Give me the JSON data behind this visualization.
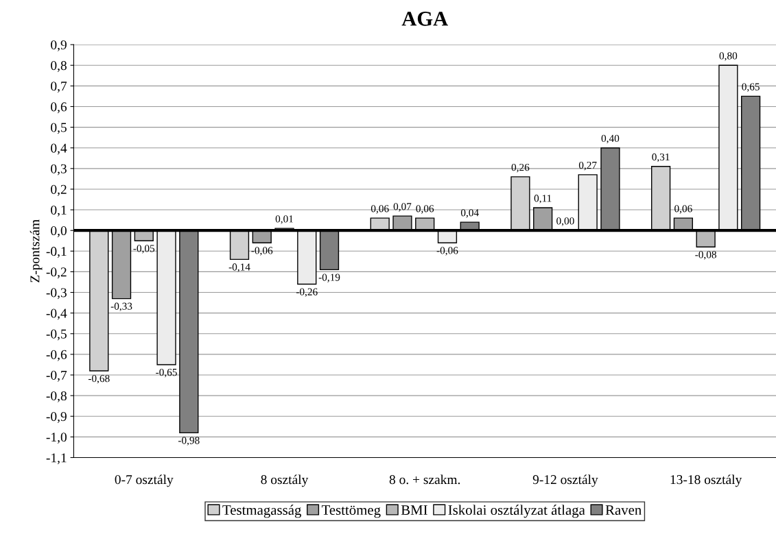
{
  "chart_data": {
    "type": "bar",
    "title": "AGA",
    "ylabel": "Z-pontszám",
    "categories": [
      "0-7 osztály",
      "8 osztály",
      "8 o. + szakm.",
      "9-12 osztály",
      "13-18 osztály"
    ],
    "series": [
      {
        "name": "Testmagasság",
        "color": "#d0d0d0",
        "values": [
          -0.68,
          -0.14,
          0.06,
          0.26,
          0.31
        ],
        "value_labels": [
          "-0,68",
          "-0,14",
          "0,06",
          "0,26",
          "0,31"
        ]
      },
      {
        "name": "Testtömeg",
        "color": "#a0a0a0",
        "values": [
          -0.33,
          -0.06,
          0.07,
          0.11,
          0.06
        ],
        "value_labels": [
          "-0,33",
          "-0,06",
          "0,07",
          "0,11",
          "0,06"
        ]
      },
      {
        "name": "BMI",
        "color": "#b8b8b8",
        "values": [
          -0.05,
          0.01,
          0.06,
          0.0,
          -0.08
        ],
        "value_labels": [
          "-0,05",
          "0,01",
          "0,06",
          "0,00",
          "-0,08"
        ]
      },
      {
        "name": "Iskolai osztályzat átlaga",
        "color": "#ececec",
        "values": [
          -0.65,
          -0.26,
          -0.06,
          0.27,
          0.8
        ],
        "value_labels": [
          "-0,65",
          "-0,26",
          "-0,06",
          "0,27",
          "0,80"
        ]
      },
      {
        "name": "Raven",
        "color": "#808080",
        "values": [
          -0.98,
          -0.19,
          0.04,
          0.4,
          0.65
        ],
        "value_labels": [
          "-0,98",
          "-0,19",
          "0,04",
          "0,40",
          "0,65"
        ]
      }
    ],
    "ylim": [
      -1.1,
      0.9
    ],
    "yticks": [
      {
        "value": -1.1,
        "label": "-1,1"
      },
      {
        "value": -1.0,
        "label": "-1,0"
      },
      {
        "value": -0.9,
        "label": "-0,9"
      },
      {
        "value": -0.8,
        "label": "-0,8"
      },
      {
        "value": -0.7,
        "label": "-0,7"
      },
      {
        "value": -0.6,
        "label": "-0,6"
      },
      {
        "value": -0.5,
        "label": "-0,5"
      },
      {
        "value": -0.4,
        "label": "-0,4"
      },
      {
        "value": -0.3,
        "label": "-0,3"
      },
      {
        "value": -0.2,
        "label": "-0,2"
      },
      {
        "value": -0.1,
        "label": "-0,1"
      },
      {
        "value": 0.0,
        "label": "0,0"
      },
      {
        "value": 0.1,
        "label": "0,1"
      },
      {
        "value": 0.2,
        "label": "0,2"
      },
      {
        "value": 0.3,
        "label": "0,3"
      },
      {
        "value": 0.4,
        "label": "0,4"
      },
      {
        "value": 0.5,
        "label": "0,5"
      },
      {
        "value": 0.6,
        "label": "0,6"
      },
      {
        "value": 0.7,
        "label": "0,7"
      },
      {
        "value": 0.8,
        "label": "0,8"
      },
      {
        "value": 0.9,
        "label": "0,9"
      }
    ],
    "grid": "y",
    "legend": "bottom"
  }
}
